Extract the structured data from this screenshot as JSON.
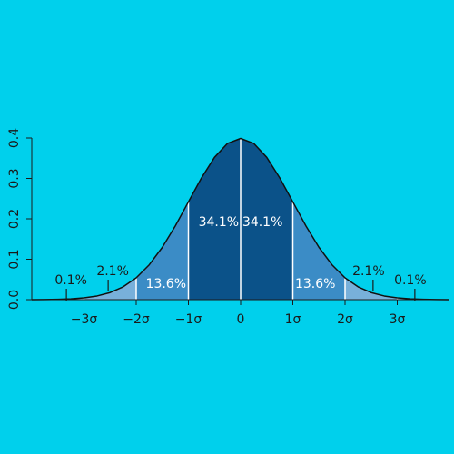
{
  "chart_data": {
    "type": "area",
    "curve": {
      "x": [
        -4,
        -3.75,
        -3.5,
        -3.25,
        -3,
        -2.75,
        -2.5,
        -2.25,
        -2,
        -1.75,
        -1.5,
        -1.25,
        -1,
        -0.75,
        -0.5,
        -0.25,
        0,
        0.25,
        0.5,
        0.75,
        1,
        1.25,
        1.5,
        1.75,
        2,
        2.25,
        2.5,
        2.75,
        3,
        3.25,
        3.5,
        3.75,
        4
      ],
      "y": [
        0.0001,
        0.0004,
        0.0009,
        0.002,
        0.0044,
        0.0091,
        0.0175,
        0.0317,
        0.054,
        0.0863,
        0.1295,
        0.1826,
        0.242,
        0.3011,
        0.3521,
        0.3867,
        0.3989,
        0.3867,
        0.3521,
        0.3011,
        0.242,
        0.1826,
        0.1295,
        0.0863,
        0.054,
        0.0317,
        0.0175,
        0.0091,
        0.0044,
        0.002,
        0.0009,
        0.0004,
        0.0001
      ],
      "color": "#111111"
    },
    "regions": {
      "bins": [
        -4,
        -3,
        -2,
        -1,
        0,
        1,
        2,
        3,
        4
      ],
      "values": [
        0.1,
        2.1,
        13.6,
        34.1,
        34.1,
        13.6,
        2.1,
        0.1
      ],
      "value_labels": [
        "0.1%",
        "2.1%",
        "13.6%",
        "34.1%",
        "34.1%",
        "13.6%",
        "2.1%",
        "0.1%"
      ],
      "colors": [
        "#9cc7e6",
        "#78b0da",
        "#3b8cc6",
        "#0b5289",
        "#0b5289",
        "#3b8cc6",
        "#78b0da",
        "#9cc7e6"
      ]
    },
    "xlim": [
      -4,
      4
    ],
    "ylim": [
      0,
      0.4
    ],
    "xticks": [
      {
        "value": -3,
        "label": "−3σ"
      },
      {
        "value": -2,
        "label": "−2σ"
      },
      {
        "value": -1,
        "label": "−1σ"
      },
      0,
      {
        "value": 1,
        "label": "1σ"
      },
      {
        "value": 2,
        "label": "2σ"
      },
      {
        "value": 3,
        "label": "3σ"
      }
    ],
    "yticks": [
      {
        "value": 0,
        "label": "0.0"
      },
      0.1,
      0.2,
      0.3,
      0.4
    ]
  }
}
